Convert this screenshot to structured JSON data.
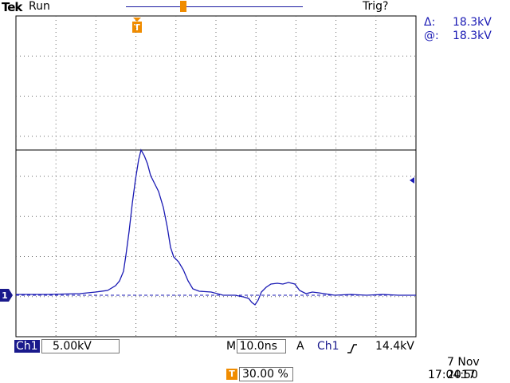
{
  "header": {
    "brand": "Tek",
    "run_status": "Run",
    "trigger_status": "Trig?"
  },
  "measurement": {
    "delta_label": "Δ:",
    "delta_value": "18.3kV",
    "at_label": "@:",
    "at_value": "18.3kV"
  },
  "channel": {
    "badge": "Ch1",
    "scale": "5.00kV",
    "ground_marker": "1",
    "color": "#1a1ab4"
  },
  "timebase": {
    "label": "M 10.0ns"
  },
  "trigger": {
    "mode_label": "A",
    "source": "Ch1",
    "level": "14.4kV",
    "position_icon": "T",
    "position": "30.00 %",
    "marker_color": "#f08c00"
  },
  "datetime": {
    "date": "7 Nov 2017",
    "time": "17:04:50"
  },
  "waveform": {
    "pulse_peak_kV": 18.3,
    "trigger_level_kV": 14.4
  }
}
